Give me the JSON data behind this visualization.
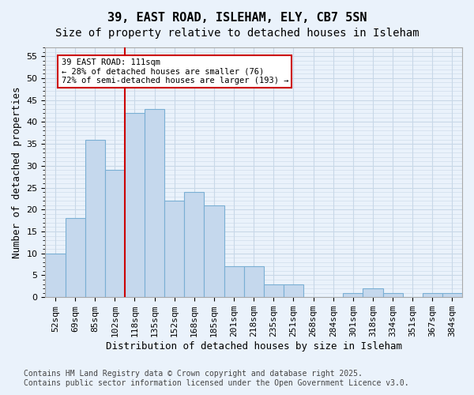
{
  "title": "39, EAST ROAD, ISLEHAM, ELY, CB7 5SN",
  "subtitle": "Size of property relative to detached houses in Isleham",
  "xlabel": "Distribution of detached houses by size in Isleham",
  "ylabel": "Number of detached properties",
  "categories": [
    "52sqm",
    "69sqm",
    "85sqm",
    "102sqm",
    "118sqm",
    "135sqm",
    "152sqm",
    "168sqm",
    "185sqm",
    "201sqm",
    "218sqm",
    "235sqm",
    "251sqm",
    "268sqm",
    "284sqm",
    "301sqm",
    "318sqm",
    "334sqm",
    "351sqm",
    "367sqm",
    "384sqm"
  ],
  "values": [
    10,
    18,
    36,
    29,
    42,
    43,
    22,
    24,
    21,
    7,
    7,
    3,
    3,
    0,
    0,
    1,
    2,
    1,
    0,
    1,
    1
  ],
  "bar_color": "#c5d8ed",
  "bar_edge_color": "#7aafd4",
  "grid_color": "#c8d8e8",
  "background_color": "#eaf2fb",
  "vline_x": 3.5,
  "vline_color": "#cc0000",
  "annotation_text": "39 EAST ROAD: 111sqm\n← 28% of detached houses are smaller (76)\n72% of semi-detached houses are larger (193) →",
  "annotation_box_color": "#ffffff",
  "annotation_box_edge": "#cc0000",
  "ylim": [
    0,
    57
  ],
  "yticks": [
    0,
    5,
    10,
    15,
    20,
    25,
    30,
    35,
    40,
    45,
    50,
    55
  ],
  "footer": "Contains HM Land Registry data © Crown copyright and database right 2025.\nContains public sector information licensed under the Open Government Licence v3.0.",
  "title_fontsize": 11,
  "subtitle_fontsize": 10,
  "xlabel_fontsize": 9,
  "ylabel_fontsize": 9,
  "tick_fontsize": 8,
  "footer_fontsize": 7
}
